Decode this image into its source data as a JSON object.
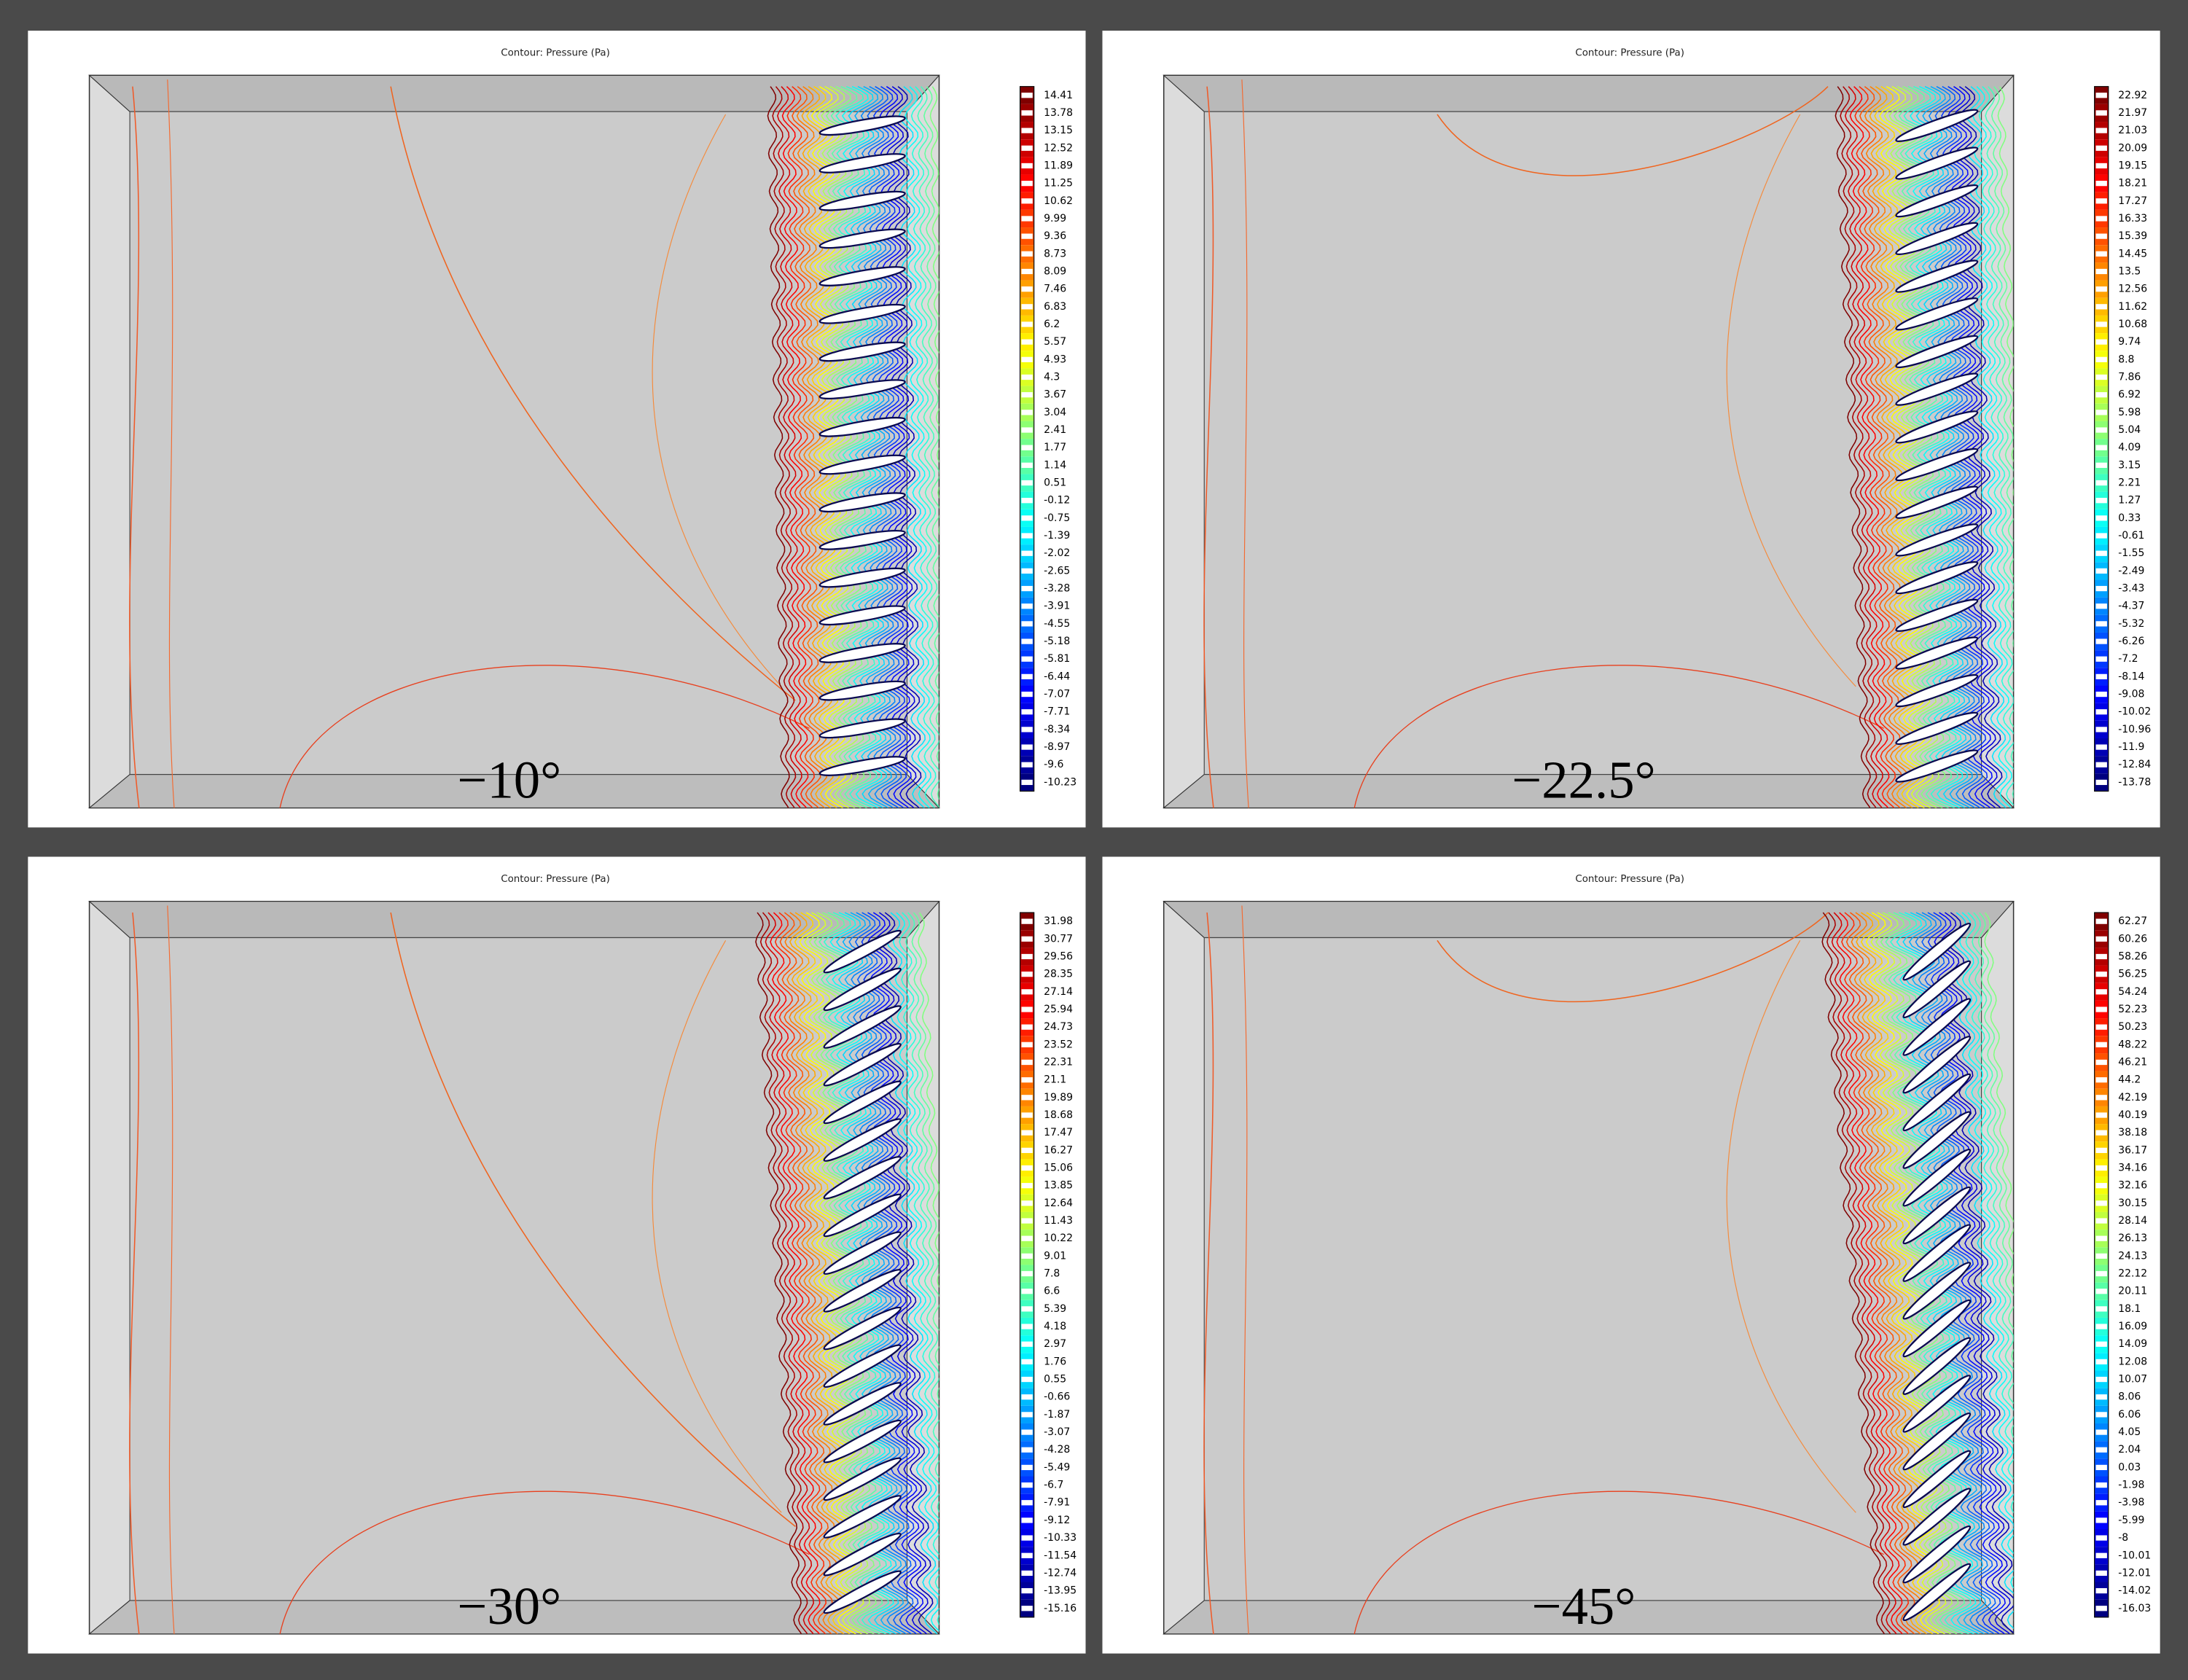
{
  "panels": [
    {
      "title": "Contour: Pressure (Pa)",
      "label": "−10°",
      "legend": [
        14.41,
        13.78,
        13.15,
        12.52,
        11.89,
        11.25,
        10.62,
        9.99,
        9.36,
        8.73,
        8.09,
        7.46,
        6.83,
        6.2,
        5.57,
        4.93,
        4.3,
        3.67,
        3.04,
        2.41,
        1.77,
        1.14,
        0.51,
        -0.12,
        -0.75,
        -1.39,
        -2.02,
        -2.65,
        -3.28,
        -3.91,
        -4.55,
        -5.18,
        -5.81,
        -6.44,
        -7.07,
        -7.71,
        -8.34,
        -8.97,
        -9.6,
        -10.23
      ]
    },
    {
      "title": "Contour: Pressure (Pa)",
      "label": "−22.5°",
      "legend": [
        22.92,
        21.97,
        21.03,
        20.09,
        19.15,
        18.21,
        17.27,
        16.33,
        15.39,
        14.45,
        13.5,
        12.56,
        11.62,
        10.68,
        9.74,
        8.8,
        7.86,
        6.92,
        5.98,
        5.04,
        4.09,
        3.15,
        2.21,
        1.27,
        0.33,
        -0.61,
        -1.55,
        -2.49,
        -3.43,
        -4.37,
        -5.32,
        -6.26,
        -7.2,
        -8.14,
        -9.08,
        -10.02,
        -10.96,
        -11.9,
        -12.84,
        -13.78
      ]
    },
    {
      "title": "Contour: Pressure (Pa)",
      "label": "−30°",
      "legend": [
        31.98,
        30.77,
        29.56,
        28.35,
        27.14,
        25.94,
        24.73,
        23.52,
        22.31,
        21.1,
        19.89,
        18.68,
        17.47,
        16.27,
        15.06,
        13.85,
        12.64,
        11.43,
        10.22,
        9.01,
        7.8,
        6.6,
        5.39,
        4.18,
        2.97,
        1.76,
        0.55,
        -0.66,
        -1.87,
        -3.07,
        -4.28,
        -5.49,
        -6.7,
        -7.91,
        -9.12,
        -10.33,
        -11.54,
        -12.74,
        -13.95,
        -15.16
      ]
    },
    {
      "title": "Contour: Pressure (Pa)",
      "label": "−45°",
      "legend": [
        62.27,
        60.26,
        58.26,
        56.25,
        54.24,
        52.23,
        50.23,
        48.22,
        46.21,
        44.2,
        42.19,
        40.19,
        38.18,
        36.17,
        34.16,
        32.16,
        30.15,
        28.14,
        26.13,
        24.13,
        22.12,
        20.11,
        18.1,
        16.09,
        14.09,
        12.08,
        10.07,
        8.06,
        6.06,
        4.05,
        2.04,
        0.03,
        -1.98,
        -3.98,
        -5.99,
        -8,
        -10.01,
        -12.01,
        -14.02,
        -16.03
      ]
    }
  ]
}
